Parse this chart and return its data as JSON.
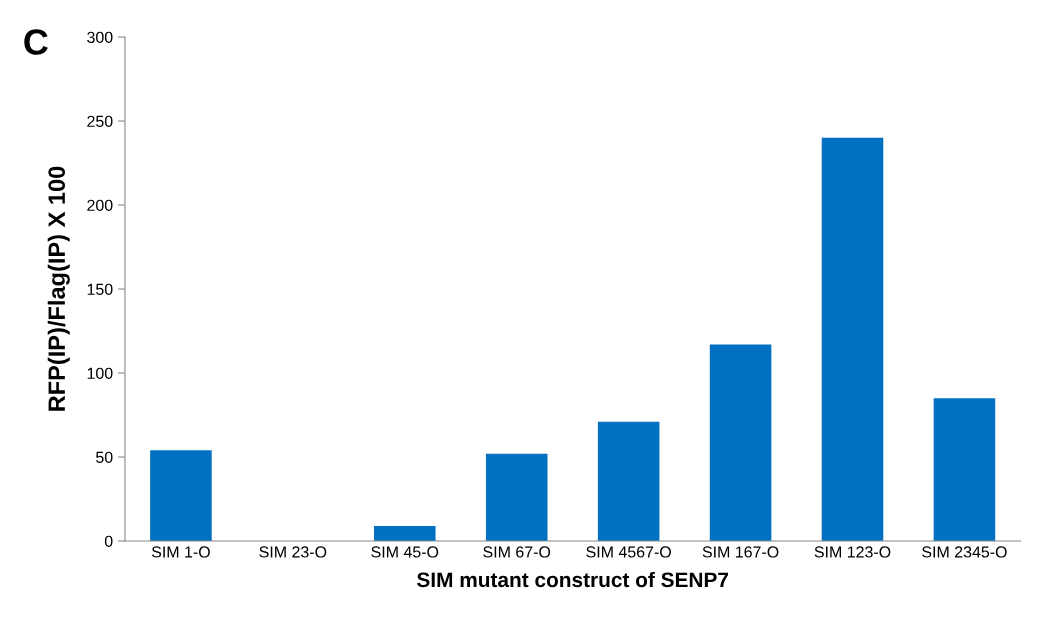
{
  "chart_data": {
    "type": "bar",
    "xlabel": "SIM mutant construct of SENP7",
    "ylabel": "RFP(IP)/Flag(IP) X 100",
    "categories": [
      "SIM 1-O",
      "SIM 23-O",
      "SIM 45-O",
      "SIM 67-O",
      "SIM 4567-O",
      "SIM 167-O",
      "SIM 123-O",
      "SIM 2345-O"
    ],
    "values": [
      54,
      0,
      9,
      52,
      71,
      117,
      240,
      85
    ],
    "color": "#0070c0",
    "ylim": [
      0,
      300
    ],
    "yticks": [
      0,
      50,
      100,
      150,
      200,
      250,
      300
    ],
    "grid": false,
    "legend": false,
    "annotations": [
      "C"
    ]
  }
}
